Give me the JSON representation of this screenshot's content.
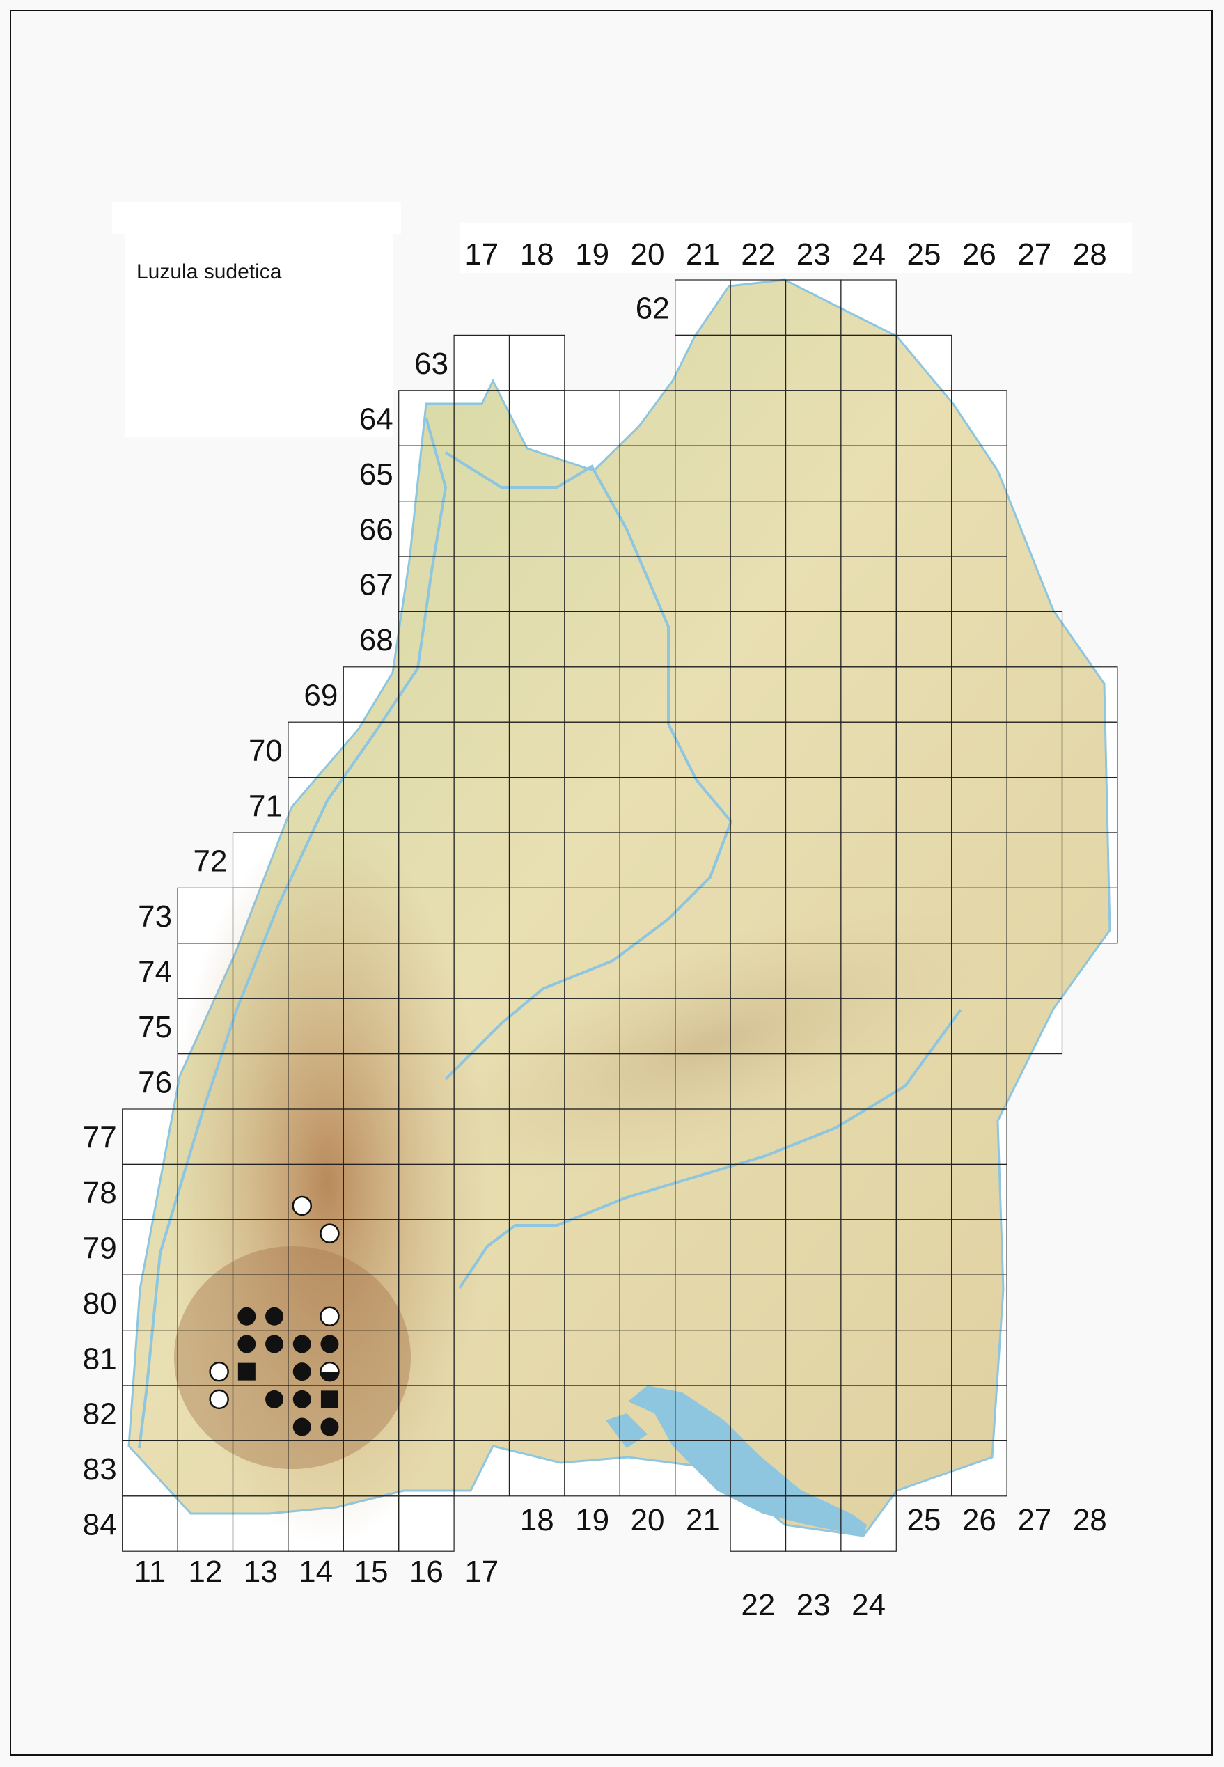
{
  "legend": {
    "title": "Luzula sudetica"
  },
  "colors": {
    "land": "#e6dcae",
    "lowland": "#c9d39a",
    "highland": "#b98a5a",
    "water": "#8ec6e0",
    "grid": "#222222",
    "symbol": "#111111"
  },
  "grid": {
    "row_labels": [
      "62",
      "63",
      "64",
      "65",
      "66",
      "67",
      "68",
      "69",
      "70",
      "71",
      "72",
      "73",
      "74",
      "75",
      "76",
      "77",
      "78",
      "79",
      "80",
      "81",
      "82",
      "83",
      "84"
    ],
    "top_col_labels": [
      "17",
      "18",
      "19",
      "20",
      "21",
      "22",
      "23",
      "24",
      "25",
      "26",
      "27",
      "28"
    ],
    "bottom_col_labels_left": [
      "11",
      "12",
      "13",
      "14",
      "15",
      "16",
      "17"
    ],
    "bottom_col_labels_mid": [
      "18",
      "19",
      "20",
      "21"
    ],
    "bottom_col_labels_lake": [
      "22",
      "23",
      "24"
    ],
    "bottom_col_labels_right": [
      "25",
      "26",
      "27",
      "28"
    ]
  },
  "symbol_types": {
    "filled-circle": "filled circle",
    "open-circle": "open circle",
    "filled-square": "filled square",
    "half-circle": "circle, lower half filled"
  },
  "records": [
    {
      "row": 78,
      "col": 14,
      "quadrant": 3,
      "symbol": "open-circle"
    },
    {
      "row": 79,
      "col": 14,
      "quadrant": 2,
      "symbol": "open-circle"
    },
    {
      "row": 80,
      "col": 13,
      "quadrant": 3,
      "symbol": "filled-circle"
    },
    {
      "row": 80,
      "col": 13,
      "quadrant": 4,
      "symbol": "filled-circle"
    },
    {
      "row": 80,
      "col": 14,
      "quadrant": 4,
      "symbol": "open-circle"
    },
    {
      "row": 81,
      "col": 13,
      "quadrant": 1,
      "symbol": "filled-circle"
    },
    {
      "row": 81,
      "col": 13,
      "quadrant": 2,
      "symbol": "filled-circle"
    },
    {
      "row": 81,
      "col": 14,
      "quadrant": 1,
      "symbol": "filled-circle"
    },
    {
      "row": 81,
      "col": 14,
      "quadrant": 2,
      "symbol": "filled-circle"
    },
    {
      "row": 81,
      "col": 12,
      "quadrant": 4,
      "symbol": "open-circle"
    },
    {
      "row": 81,
      "col": 13,
      "quadrant": 3,
      "symbol": "filled-square"
    },
    {
      "row": 81,
      "col": 14,
      "quadrant": 3,
      "symbol": "filled-circle"
    },
    {
      "row": 81,
      "col": 14,
      "quadrant": 4,
      "symbol": "half-circle"
    },
    {
      "row": 82,
      "col": 12,
      "quadrant": 2,
      "symbol": "open-circle"
    },
    {
      "row": 82,
      "col": 13,
      "quadrant": 2,
      "symbol": "filled-circle"
    },
    {
      "row": 82,
      "col": 14,
      "quadrant": 1,
      "symbol": "filled-circle"
    },
    {
      "row": 82,
      "col": 14,
      "quadrant": 2,
      "symbol": "filled-square"
    },
    {
      "row": 82,
      "col": 14,
      "quadrant": 3,
      "symbol": "filled-circle"
    },
    {
      "row": 82,
      "col": 14,
      "quadrant": 4,
      "symbol": "filled-circle"
    }
  ]
}
